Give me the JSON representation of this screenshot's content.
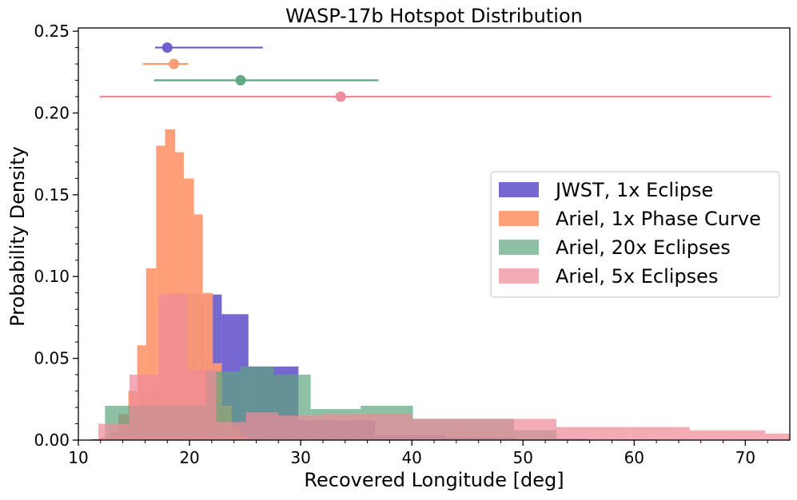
{
  "chart_data": {
    "type": "histogram",
    "title": "WASP-17b Hotspot Distribution",
    "xlabel": "Recovered Longitude [deg]",
    "ylabel": "Probability Density",
    "xlim": [
      10,
      74
    ],
    "ylim": [
      0,
      0.252
    ],
    "xticks": [
      10,
      20,
      30,
      40,
      50,
      60,
      70
    ],
    "xtick_labels": [
      "10",
      "20",
      "30",
      "40",
      "50",
      "60",
      "70"
    ],
    "yticks": [
      0,
      0.05,
      0.1,
      0.15,
      0.2,
      0.25
    ],
    "ytick_labels": [
      "0.00",
      "0.05",
      "0.10",
      "0.15",
      "0.20",
      "0.25"
    ],
    "grid": false,
    "legend_position": "center-right",
    "series": [
      {
        "name": "JWST, 1x Eclipse",
        "color": "#6a5acd",
        "opacity": 0.92,
        "bin_edges": [
          11.2,
          13.1,
          15.5,
          18.0,
          21.0,
          22.9,
          25.3,
          29.8,
          36.7,
          43.0,
          49.3,
          55.7,
          62.0,
          68.3,
          74.0
        ],
        "densities": [
          0.0005,
          0.002,
          0.03,
          0.09,
          0.089,
          0.077,
          0.045,
          0.012,
          0.003,
          0.0015,
          0.0008,
          0.0004,
          0.0002,
          0.0001
        ]
      },
      {
        "name": "Ariel, 1x Phase Curve",
        "color": "#ff9a72",
        "opacity": 0.95,
        "bin_edges": [
          11.0,
          11.9,
          12.8,
          13.6,
          14.5,
          15.3,
          16.1,
          17.0,
          17.8,
          18.7,
          19.5,
          20.4,
          21.2,
          22.1,
          22.9,
          23.8,
          24.6,
          25.4
        ],
        "densities": [
          0.0002,
          0.0015,
          0.005,
          0.016,
          0.03,
          0.058,
          0.105,
          0.18,
          0.19,
          0.176,
          0.16,
          0.138,
          0.09,
          0.047,
          0.021,
          0.008,
          0.002
        ]
      },
      {
        "name": "Ariel, 20x Eclipses",
        "color": "#5ca57f",
        "opacity": 0.7,
        "bin_edges": [
          12.4,
          15.5,
          18.5,
          21.5,
          24.6,
          27.6,
          30.9,
          35.4,
          40.1,
          44.2,
          49.2,
          53.0
        ],
        "densities": [
          0.021,
          0.021,
          0.021,
          0.042,
          0.045,
          0.04,
          0.019,
          0.021,
          0.013,
          0.013,
          0.006
        ]
      },
      {
        "name": "Ariel, 5x Eclipses",
        "color": "#ee8a9a",
        "opacity": 0.72,
        "bin_edges": [
          11.8,
          14.6,
          17.2,
          19.8,
          22.4,
          25.1,
          28.0,
          32.0,
          36.2,
          40.0,
          47.7,
          53.0,
          59.6,
          65.0,
          71.8,
          74.0
        ],
        "densities": [
          0.01,
          0.04,
          0.089,
          0.043,
          0.011,
          0.017,
          0.015,
          0.016,
          0.016,
          0.013,
          0.013,
          0.008,
          0.008,
          0.006,
          0.004
        ]
      }
    ],
    "errorbars": [
      {
        "series": "JWST, 1x Eclipse",
        "y": 0.24,
        "x": 18.0,
        "xmin": 16.9,
        "xmax": 26.6
      },
      {
        "series": "Ariel, 1x Phase Curve",
        "y": 0.23,
        "x": 18.6,
        "xmin": 15.8,
        "xmax": 19.9
      },
      {
        "series": "Ariel, 20x Eclipses",
        "y": 0.22,
        "x": 24.6,
        "xmin": 16.8,
        "xmax": 37.0
      },
      {
        "series": "Ariel, 5x Eclipses",
        "y": 0.21,
        "x": 33.6,
        "xmin": 11.9,
        "xmax": 72.3
      }
    ]
  }
}
